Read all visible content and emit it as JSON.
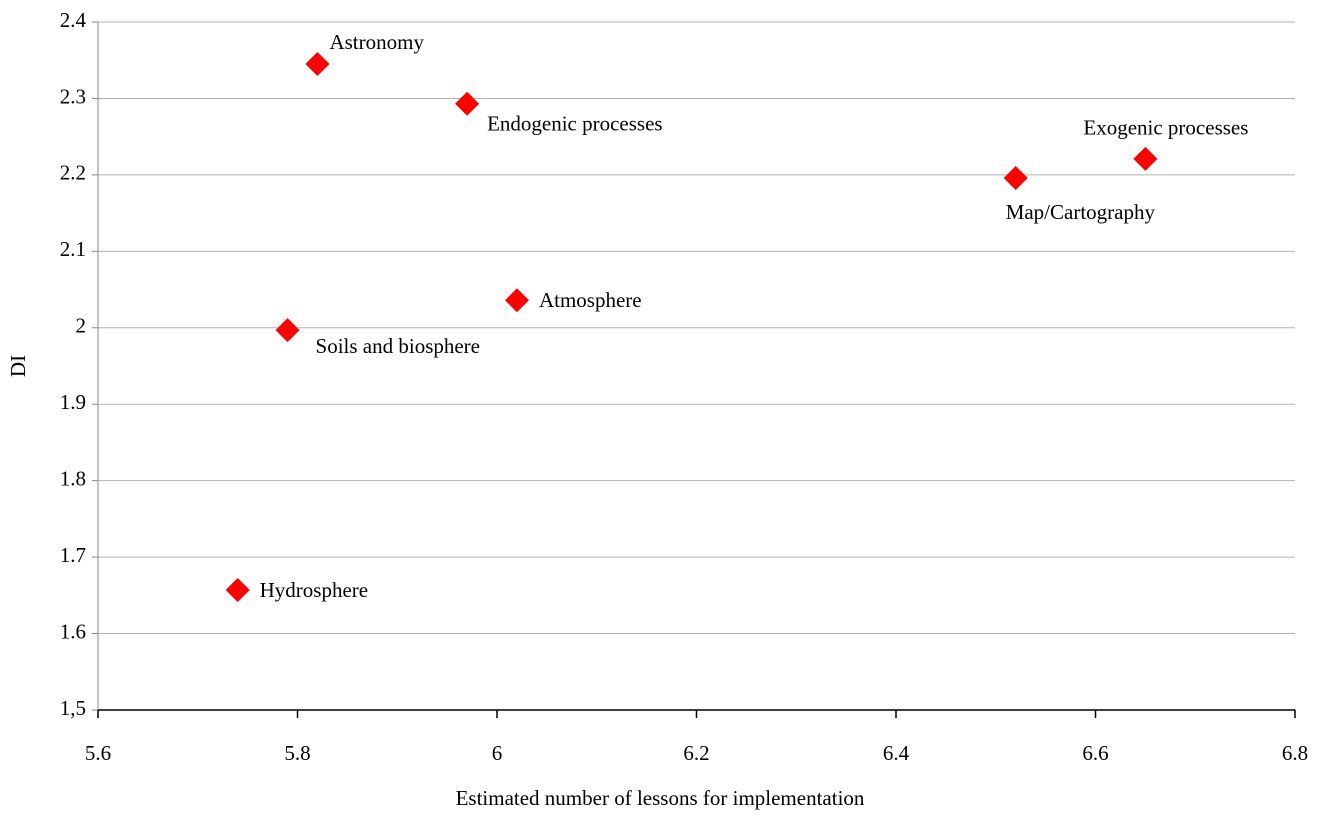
{
  "chart_data": {
    "type": "scatter",
    "xlabel": "Estimated number of lessons for implementation",
    "ylabel": "DI",
    "labels": [
      "Astronomy",
      "Endogenic processes",
      "Exogenic processes",
      "Map/Cartography",
      "Atmosphere",
      "Soils and biosphere",
      "Hydrosphere"
    ],
    "x": [
      5.82,
      5.97,
      6.65,
      6.52,
      6.02,
      5.79,
      5.74
    ],
    "values": [
      2.345,
      2.293,
      2.221,
      2.196,
      2.036,
      1.997,
      1.657
    ],
    "color": "#ff0000",
    "xlim": [
      5.6,
      6.8
    ],
    "xticks": [
      5.6,
      5.8,
      6,
      6.2,
      6.4,
      6.6,
      6.8
    ],
    "ylim": [
      1.5,
      2.4
    ],
    "yticks": [
      {
        "value": 1.5,
        "label": "1,5"
      },
      1.6,
      1.7,
      1.8,
      1.9,
      2,
      2.1,
      2.2,
      2.3,
      2.4
    ],
    "grid": true
  }
}
